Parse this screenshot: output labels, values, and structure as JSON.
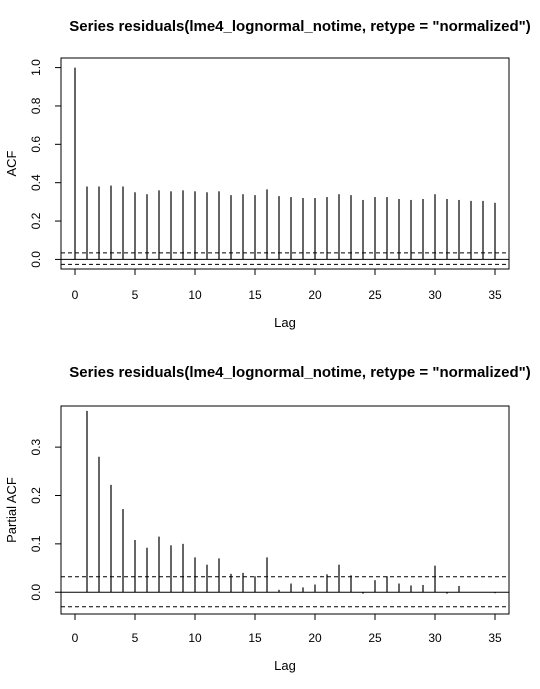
{
  "chart_data": [
    {
      "type": "bar",
      "subtype": "acf-correlogram",
      "title": "Series  residuals(lme4_lognormal_notime, retype = \"normalized\")",
      "xlabel": "Lag",
      "ylabel": "ACF",
      "xlim": [
        0,
        35
      ],
      "ylim": [
        -0.05,
        1.05
      ],
      "xticks": [
        "0",
        "5",
        "10",
        "15",
        "20",
        "25",
        "30",
        "35"
      ],
      "yticks": [
        "0.0",
        "0.2",
        "0.4",
        "0.6",
        "0.8",
        "1.0"
      ],
      "confidence_band": [
        -0.026,
        0.034
      ],
      "x": [
        0,
        1,
        2,
        3,
        4,
        5,
        6,
        7,
        8,
        9,
        10,
        11,
        12,
        13,
        14,
        15,
        16,
        17,
        18,
        19,
        20,
        21,
        22,
        23,
        24,
        25,
        26,
        27,
        28,
        29,
        30,
        31,
        32,
        33,
        34,
        35
      ],
      "values": [
        1.0,
        0.38,
        0.38,
        0.385,
        0.38,
        0.35,
        0.34,
        0.36,
        0.355,
        0.36,
        0.355,
        0.35,
        0.355,
        0.335,
        0.34,
        0.335,
        0.365,
        0.33,
        0.325,
        0.32,
        0.32,
        0.325,
        0.34,
        0.335,
        0.31,
        0.325,
        0.325,
        0.315,
        0.31,
        0.315,
        0.34,
        0.315,
        0.31,
        0.305,
        0.305,
        0.295
      ]
    },
    {
      "type": "bar",
      "subtype": "pacf-correlogram",
      "title": "Series  residuals(lme4_lognormal_notime, retype = \"normalized\")",
      "xlabel": "Lag",
      "ylabel": "Partial ACF",
      "xlim": [
        0,
        35
      ],
      "ylim": [
        -0.045,
        0.385
      ],
      "xticks": [
        "0",
        "5",
        "10",
        "15",
        "20",
        "25",
        "30",
        "35"
      ],
      "yticks": [
        "0.0",
        "0.1",
        "0.2",
        "0.3"
      ],
      "confidence_band": [
        -0.03,
        0.032
      ],
      "x": [
        1,
        2,
        3,
        4,
        5,
        6,
        7,
        8,
        9,
        10,
        11,
        12,
        13,
        14,
        15,
        16,
        17,
        18,
        19,
        20,
        21,
        22,
        23,
        24,
        25,
        26,
        27,
        28,
        29,
        30,
        31,
        32,
        33,
        34,
        35
      ],
      "values": [
        0.375,
        0.28,
        0.222,
        0.172,
        0.108,
        0.092,
        0.115,
        0.097,
        0.1,
        0.072,
        0.057,
        0.07,
        0.038,
        0.04,
        0.033,
        0.072,
        0.005,
        0.018,
        0.01,
        0.016,
        0.037,
        0.057,
        0.035,
        -0.003,
        0.025,
        0.033,
        0.018,
        0.014,
        0.015,
        0.055,
        -0.003,
        0.013,
        0.0,
        0.0,
        -0.002
      ]
    }
  ]
}
